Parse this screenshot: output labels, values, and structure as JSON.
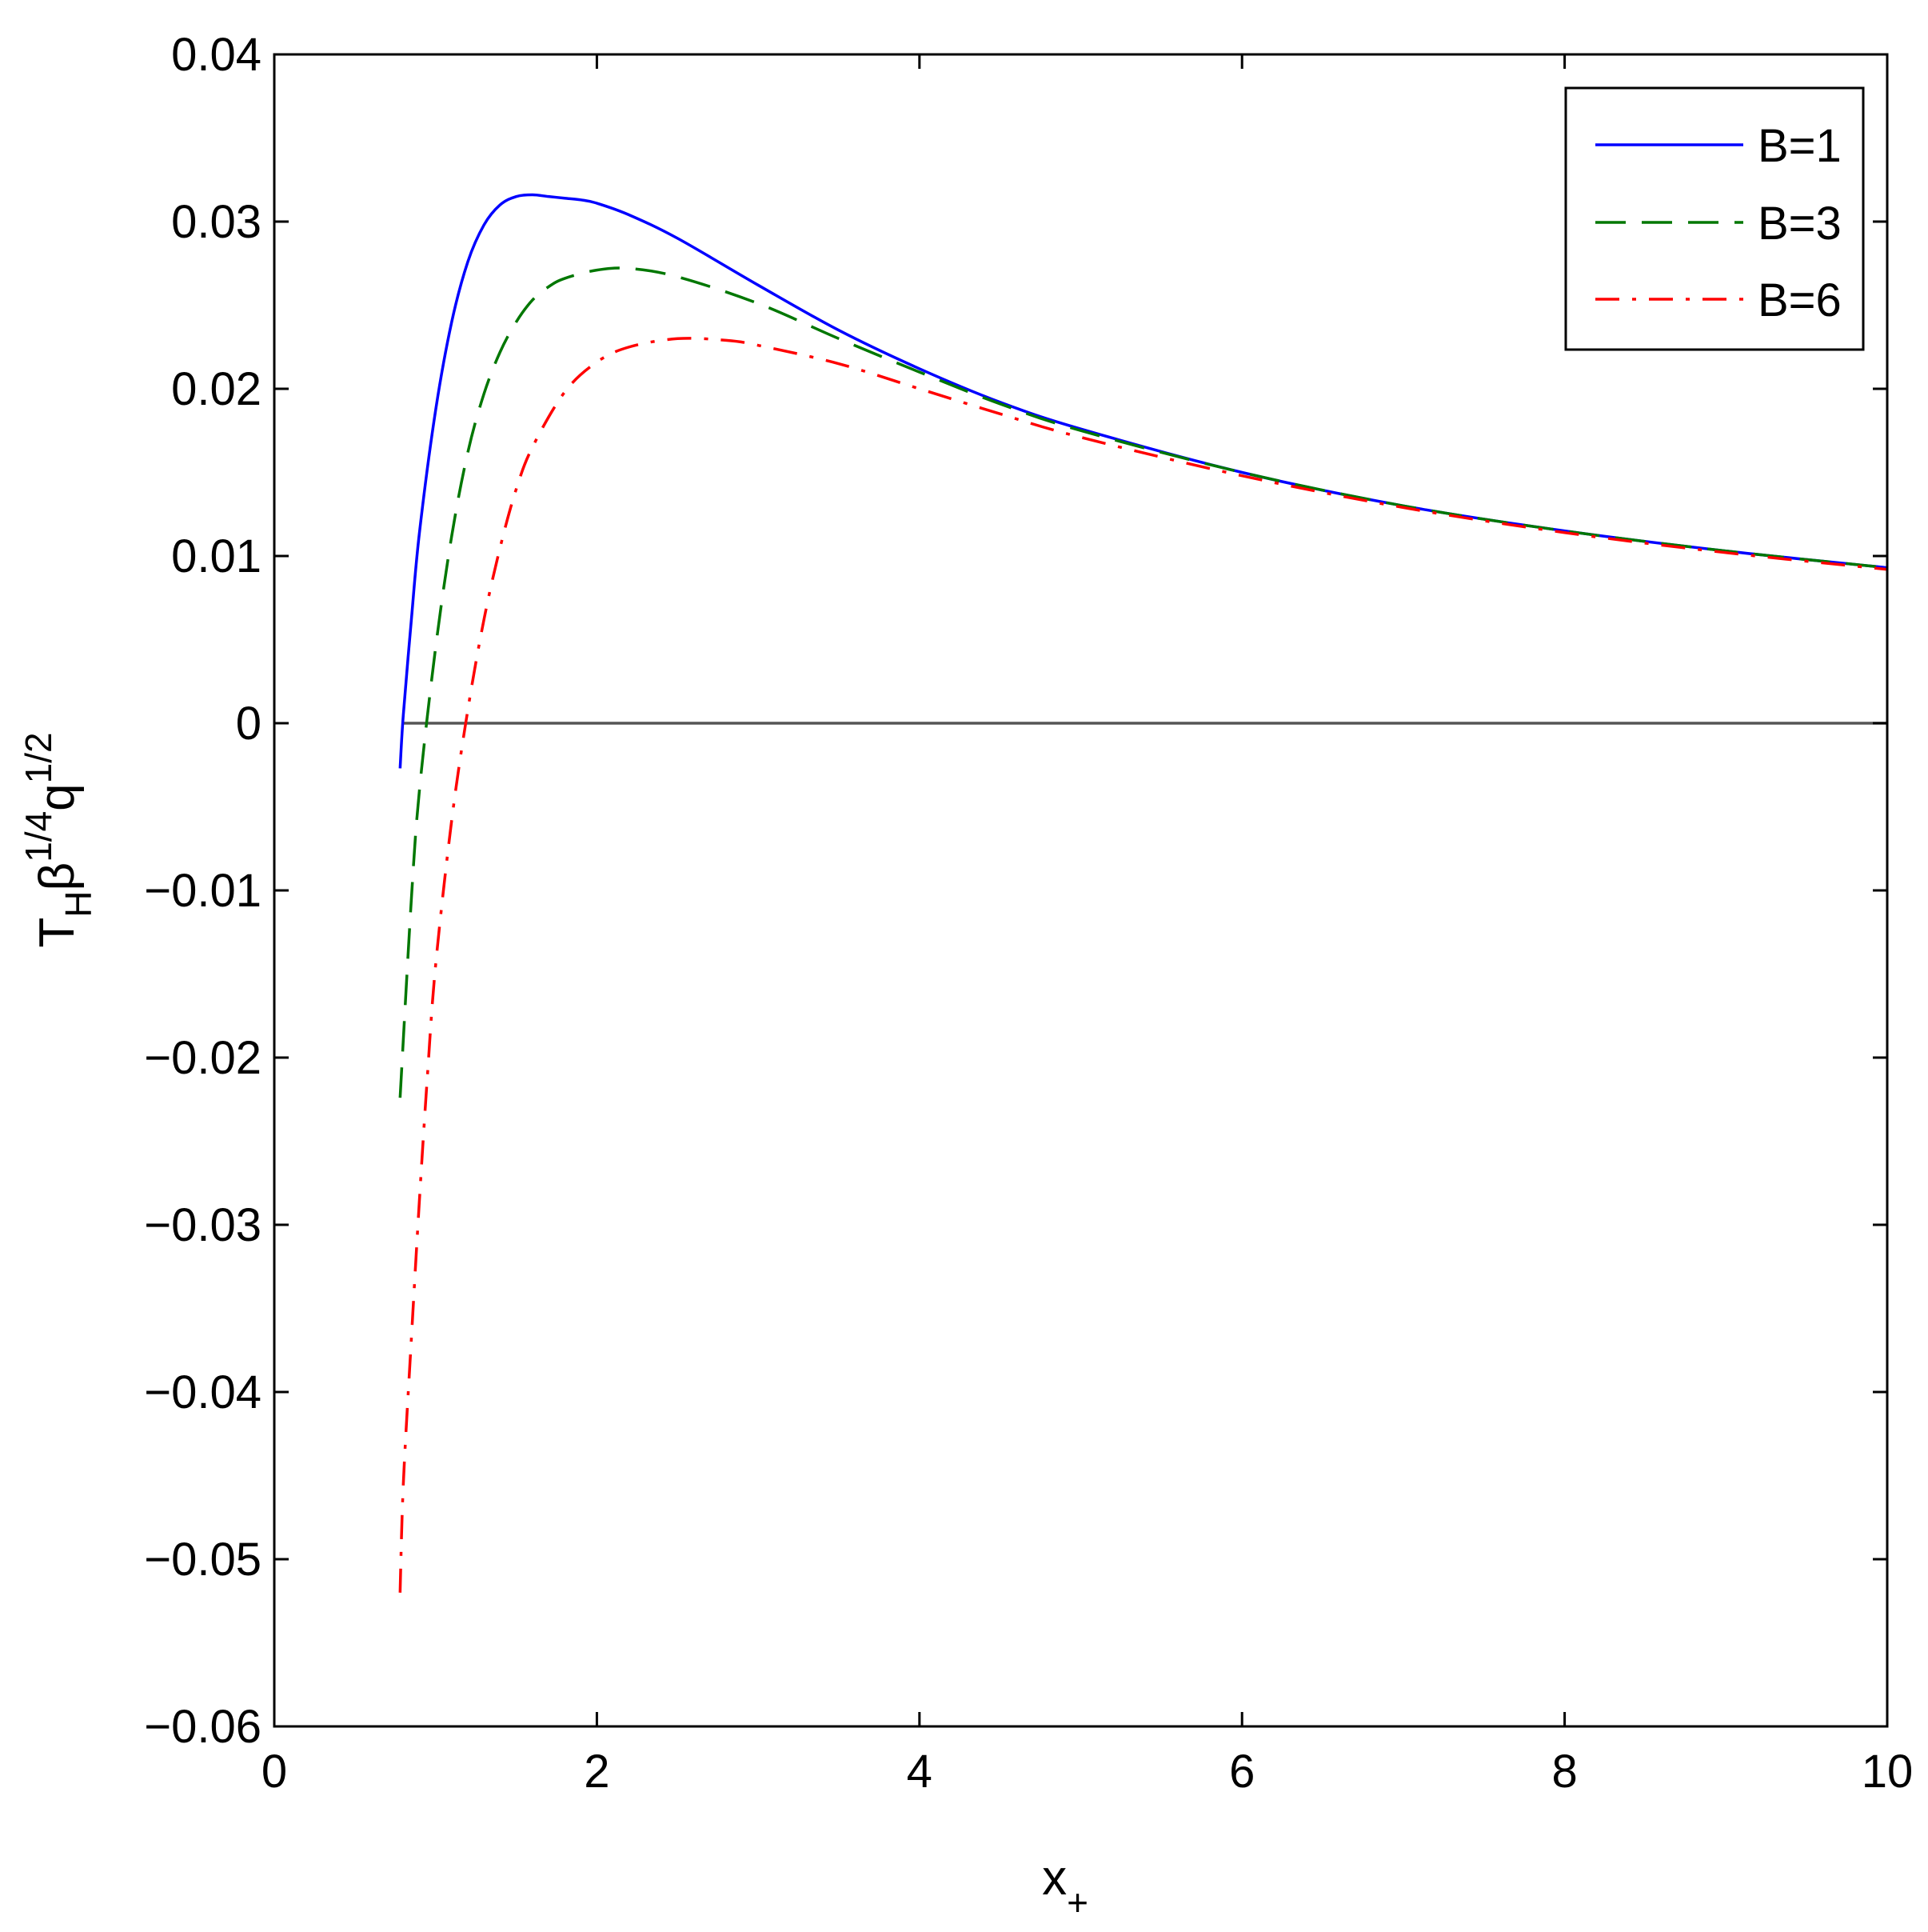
{
  "chart_data": {
    "type": "line",
    "xlabel": {
      "base": "x",
      "sub": "+"
    },
    "ylabel": {
      "base": "T",
      "sub": "H",
      "mid": "β",
      "sup1": "1/4",
      "tail": "q",
      "sup2": "1/2"
    },
    "xlim": [
      0,
      10
    ],
    "ylim": [
      -0.06,
      0.04
    ],
    "xticks": [
      0,
      2,
      4,
      6,
      8,
      10
    ],
    "xtick_labels": [
      "0",
      "2",
      "4",
      "6",
      "8",
      "10"
    ],
    "yticks": [
      -0.06,
      -0.05,
      -0.04,
      -0.03,
      -0.02,
      -0.01,
      0,
      0.01,
      0.02,
      0.03,
      0.04
    ],
    "ytick_labels": [
      "−0.06",
      "−0.05",
      "−0.04",
      "−0.03",
      "−0.02",
      "−0.01",
      "0",
      "0.01",
      "0.02",
      "0.03",
      "0.04"
    ],
    "grid": false,
    "legend_position": "top-right",
    "zero_line": {
      "y": 0,
      "x_range": [
        0.8,
        10
      ],
      "color": "#555555"
    },
    "series": [
      {
        "name": "B=1",
        "color": "#0000ff",
        "style": "solid",
        "x": [
          0.78,
          0.8,
          0.85,
          0.9,
          1.0,
          1.1,
          1.2,
          1.3,
          1.4,
          1.5,
          1.6,
          1.7,
          1.8,
          1.9,
          2.0,
          2.2,
          2.5,
          3.0,
          3.5,
          4.0,
          4.5,
          5.0,
          6.0,
          7.0,
          8.0,
          9.0,
          10.0
        ],
        "y": [
          -0.0027,
          0.0005,
          0.0062,
          0.0114,
          0.0187,
          0.024,
          0.0276,
          0.0298,
          0.031,
          0.0315,
          0.0316,
          0.0315,
          0.0314,
          0.0313,
          0.0311,
          0.0304,
          0.029,
          0.0262,
          0.0235,
          0.0212,
          0.0192,
          0.0176,
          0.015,
          0.013,
          0.0115,
          0.0103,
          0.0093
        ]
      },
      {
        "name": "B=3",
        "color": "#007700",
        "style": "dashed",
        "x": [
          0.78,
          0.85,
          0.9,
          1.0,
          1.1,
          1.2,
          1.3,
          1.4,
          1.5,
          1.6,
          1.7,
          1.8,
          2.0,
          2.2,
          2.5,
          3.0,
          3.5,
          4.0,
          4.5,
          5.0,
          6.0,
          7.0,
          8.0,
          9.0,
          10.0
        ],
        "y": [
          -0.0224,
          -0.0105,
          -0.004,
          0.0045,
          0.0112,
          0.0162,
          0.0197,
          0.0222,
          0.024,
          0.0253,
          0.0261,
          0.0266,
          0.0271,
          0.0272,
          0.0267,
          0.0251,
          0.023,
          0.021,
          0.0191,
          0.0175,
          0.015,
          0.013,
          0.0115,
          0.0103,
          0.0093
        ]
      },
      {
        "name": "B=6",
        "color": "#ff0000",
        "style": "dashdot",
        "x": [
          0.78,
          0.8,
          0.85,
          0.9,
          0.95,
          1.0,
          1.1,
          1.2,
          1.3,
          1.4,
          1.5,
          1.6,
          1.8,
          2.0,
          2.2,
          2.5,
          2.8,
          3.0,
          3.5,
          4.0,
          4.5,
          5.0,
          6.0,
          7.0,
          8.0,
          9.0,
          10.0
        ],
        "y": [
          -0.052,
          -0.0455,
          -0.0368,
          -0.0285,
          -0.021,
          -0.0145,
          -0.0058,
          0.0008,
          0.0062,
          0.0105,
          0.014,
          0.0165,
          0.0198,
          0.0216,
          0.0225,
          0.023,
          0.0229,
          0.0226,
          0.0215,
          0.02,
          0.0185,
          0.0171,
          0.0148,
          0.0129,
          0.0114,
          0.0102,
          0.0092
        ]
      }
    ]
  }
}
